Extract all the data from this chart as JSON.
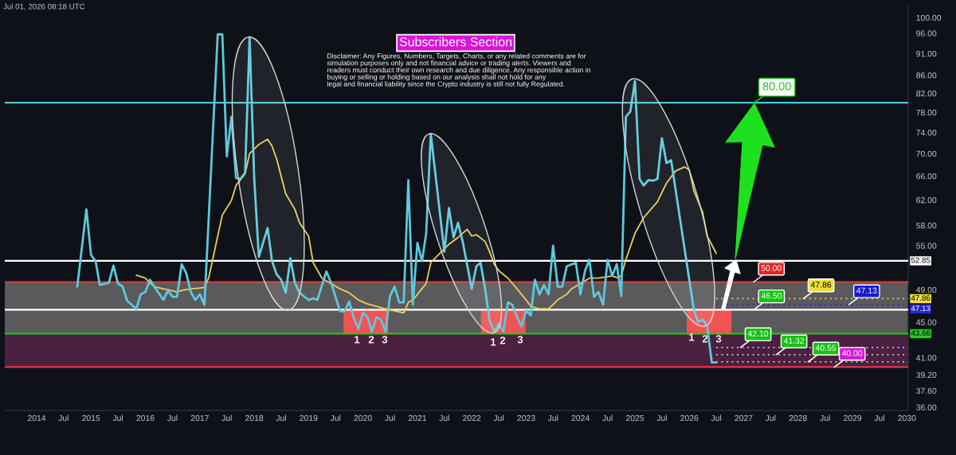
{
  "chart_data": {
    "type": "line",
    "title": "Subscribers Section",
    "annotations": [
      "Jul 01, 2026 08:18 UTC",
      "Disclaimer: Any Figures, Numbers, Targets, Charts, or any related comments are for\nsimulation purposes only and not financial advice or trading alerts. Viewers and\nreaders must conduct their own research and due diligence. Any responsible action in\nbuying or selling or holding based on our analysis shall not hold for any\nlegal and financial liability since the Crypto industry is still not fully Regulated.",
      {
        "text": "80.00",
        "x": "2027-03-09",
        "y": 80
      },
      {
        "text": "50.00",
        "x": "2027-03-09",
        "y": 50
      },
      {
        "text": "46.50",
        "x": "2027-03-10",
        "y": 46.5
      },
      {
        "text": "47.86",
        "x": "2028-02-06",
        "y": 47.86
      },
      {
        "text": "47.13",
        "x": "2028-12-08",
        "y": 47.13
      },
      {
        "text": "42.10",
        "x": "2026-12-10",
        "y": 42.1
      },
      {
        "text": "41.32",
        "x": "2027-08-08",
        "y": 41.32
      },
      {
        "text": "40.55",
        "x": "2028-03-09",
        "y": 40.55
      },
      {
        "text": "40.00",
        "x": "2028-09-02",
        "y": 40
      },
      "1",
      "2",
      "3",
      "1",
      "2",
      "3",
      "1",
      "2",
      "3"
    ],
    "xlim": [
      "2013-06-01",
      "2030-01-10"
    ],
    "xticks": [
      {
        "value": "2014-01-01",
        "label": "2014"
      },
      {
        "value": "2014-07-01",
        "label": "Jul"
      },
      {
        "value": "2015-01-01",
        "label": "2015"
      },
      {
        "value": "2015-07-01",
        "label": "Jul"
      },
      {
        "value": "2016-01-01",
        "label": "2016"
      },
      {
        "value": "2016-07-01",
        "label": "Jul"
      },
      {
        "value": "2017-01-01",
        "label": "2017"
      },
      {
        "value": "2017-07-01",
        "label": "Jul"
      },
      {
        "value": "2018-01-01",
        "label": "2018"
      },
      {
        "value": "2018-07-01",
        "label": "Jul"
      },
      {
        "value": "2019-01-01",
        "label": "2019"
      },
      {
        "value": "2019-07-01",
        "label": "Jul"
      },
      {
        "value": "2020-01-01",
        "label": "2020"
      },
      {
        "value": "2020-07-01",
        "label": "Jul"
      },
      {
        "value": "2021-01-01",
        "label": "2021"
      },
      {
        "value": "2021-07-01",
        "label": "Jul"
      },
      {
        "value": "2022-01-01",
        "label": "2022"
      },
      {
        "value": "2022-07-01",
        "label": "Jul"
      },
      {
        "value": "2023-01-01",
        "label": "2023"
      },
      {
        "value": "2023-07-01",
        "label": "Jul"
      },
      {
        "value": "2024-01-01",
        "label": "2024"
      },
      {
        "value": "2024-07-01",
        "label": "Jul"
      },
      {
        "value": "2025-01-01",
        "label": "2025"
      },
      {
        "value": "2025-07-01",
        "label": "Jul"
      },
      {
        "value": "2026-01-01",
        "label": "2026"
      },
      {
        "value": "2026-07-01",
        "label": "Jul"
      },
      {
        "value": "2027-01-01",
        "label": "2027"
      },
      {
        "value": "2027-07-01",
        "label": "Jul"
      },
      {
        "value": "2028-01-01",
        "label": "2028"
      },
      {
        "value": "2028-07-01",
        "label": "Jul"
      },
      {
        "value": "2029-01-01",
        "label": "2029"
      },
      {
        "value": "2029-07-01",
        "label": "Jul"
      },
      {
        "value": "2030-01-01",
        "label": "2030"
      }
    ],
    "ylim": [
      35.7,
      103
    ],
    "log": true,
    "grid": false,
    "yticks": [
      {
        "value": 100,
        "label": "100.00"
      },
      {
        "value": 96,
        "label": "96.00"
      },
      {
        "value": 91,
        "label": "91.00"
      },
      {
        "value": 86,
        "label": "86.00"
      },
      {
        "value": 82,
        "label": "82.00"
      },
      {
        "value": 78,
        "label": "78.00"
      },
      {
        "value": 74,
        "label": "74.00"
      },
      {
        "value": 70,
        "label": "70.00"
      },
      {
        "value": 66,
        "label": "66.00"
      },
      {
        "value": 62,
        "label": "62.00"
      },
      {
        "value": 58,
        "label": "58.00"
      },
      {
        "value": 55,
        "label": "55.00"
      },
      {
        "value": 49,
        "label": "49.00"
      },
      {
        "value": 45,
        "label": "45.00"
      },
      {
        "value": 41,
        "label": "41.00"
      },
      {
        "value": 39.2,
        "label": "39.20"
      },
      {
        "value": 37.6,
        "label": "37.60"
      },
      {
        "value": 36,
        "label": "36.00"
      }
    ],
    "bands": [
      {
        "axis": "y",
        "from": 43.66,
        "to": 50,
        "color": "#5a5a5c"
      },
      {
        "axis": "y",
        "from": 40,
        "to": 43.66,
        "color": "#4b2040"
      }
    ],
    "ref_lines": [
      {
        "axis": "y",
        "value": 80,
        "color": "#4fc3d9"
      },
      {
        "axis": "y",
        "value": 52.85,
        "label": "52.85",
        "color": "#ffffff"
      },
      {
        "axis": "y",
        "value": 50,
        "color": "#e53935"
      },
      {
        "axis": "y",
        "value": 47.86,
        "label": "47.86",
        "color": "#f2dc3c",
        "line_style": "dotted"
      },
      {
        "axis": "y",
        "value": 47.13,
        "label": "47.13",
        "color": "#2424d8",
        "line_style": "dotted"
      },
      {
        "axis": "y",
        "value": 46.5,
        "color": "#ffffff"
      },
      {
        "axis": "y",
        "value": 43.66,
        "label": "43.66",
        "color": "#22cc22"
      },
      {
        "axis": "y",
        "value": 42.1,
        "color": "#cfcfcf",
        "line_style": "dotted"
      },
      {
        "axis": "y",
        "value": 41.32,
        "color": "#cfcfcf",
        "line_style": "dotted"
      },
      {
        "axis": "y",
        "value": 40.55,
        "color": "#cfcfcf",
        "line_style": "dotted"
      },
      {
        "axis": "y",
        "value": 40,
        "color": "#e53935"
      }
    ],
    "series": [
      {
        "type": "bar",
        "color": "#f25252",
        "x": [
          "2020-01-21",
          "2022-08-01",
          "2026-05-14"
        ],
        "base": [
          43.66,
          43.66,
          43.66
        ],
        "values": [
          2.84,
          2.84,
          2.84
        ]
      },
      {
        "color": "#5cc9de",
        "x": [
          "2014-10",
          "2014-12",
          "2015-01",
          "2015-02",
          "2015-03",
          "2015-05",
          "2015-06",
          "2015-07",
          "2015-08",
          "2015-09",
          "2015-11",
          "2015-12",
          "2016-01",
          "2016-02",
          "2016-03",
          "2016-05",
          "2016-06",
          "2016-07",
          "2016-08",
          "2016-09",
          "2016-10",
          "2016-11",
          "2016-12",
          "2017-01",
          "2017-02",
          "2017-05",
          "2017-06",
          "2017-07",
          "2017-08",
          "2017-09",
          "2017-10",
          "2017-11",
          "2017-12",
          "2018-01",
          "2018-02",
          "2018-04",
          "2018-05",
          "2018-06",
          "2018-07",
          "2018-08",
          "2018-09",
          "2018-10",
          "2018-11",
          "2019-01",
          "2019-02",
          "2019-03",
          "2019-05",
          "2019-06",
          "2019-08",
          "2019-09",
          "2019-10",
          "2019-11",
          "2019-12",
          "2020-01",
          "2020-02",
          "2020-03",
          "2020-04",
          "2020-05",
          "2020-06",
          "2020-07",
          "2020-08",
          "2020-09",
          "2020-10",
          "2020-11",
          "2020-12",
          "2021-01",
          "2021-02",
          "2021-03",
          "2021-04",
          "2021-07",
          "2021-08",
          "2021-09",
          "2021-10",
          "2021-11",
          "2022-01",
          "2022-02",
          "2022-03",
          "2022-04",
          "2022-05",
          "2022-06",
          "2022-07",
          "2022-08",
          "2022-09",
          "2022-10",
          "2022-11",
          "2022-12",
          "2023-01",
          "2023-02",
          "2023-03",
          "2023-04",
          "2023-05",
          "2023-06",
          "2023-07",
          "2023-08",
          "2023-09",
          "2023-10",
          "2023-12",
          "2024-01",
          "2024-02",
          "2024-03",
          "2024-04",
          "2024-05",
          "2024-06",
          "2024-07",
          "2024-08",
          "2024-09",
          "2024-10",
          "2024-11",
          "2024-12",
          "2025-01",
          "2025-02",
          "2025-03",
          "2025-04",
          "2025-05",
          "2025-06",
          "2025-07",
          "2025-08",
          "2025-09",
          "2026-02",
          "2026-03",
          "2026-04",
          "2026-05",
          "2026-06",
          "2026-07"
        ],
        "values": [
          49.4,
          60.5,
          53.7,
          52.8,
          49.6,
          49.9,
          52.2,
          49.8,
          49.4,
          47.6,
          46.6,
          48.4,
          48.7,
          50.3,
          49.4,
          47.7,
          48.9,
          48.1,
          48.1,
          52.4,
          51.2,
          48.7,
          47.7,
          48.4,
          47.1,
          95.7,
          95.7,
          69.5,
          77.1,
          65.7,
          65.5,
          66.6,
          95.0,
          65.7,
          53.4,
          57.6,
          52.8,
          51.0,
          50.3,
          48.6,
          53.2,
          49.9,
          48.6,
          47.7,
          47.9,
          47.7,
          51.4,
          49.9,
          46.3,
          46.3,
          47.5,
          45.5,
          44.2,
          46.1,
          45.6,
          43.9,
          45.6,
          45.3,
          43.9,
          48.2,
          49.4,
          47.4,
          47.4,
          65.3,
          47.1,
          55.4,
          52.8,
          56.8,
          73.7,
          54.1,
          60.7,
          56.2,
          58.4,
          55.6,
          49.1,
          52.1,
          52.6,
          49.1,
          45.2,
          43.9,
          44.8,
          43.9,
          47.4,
          47.1,
          45.6,
          44.5,
          46.4,
          45.8,
          50.3,
          48.4,
          49.6,
          48.4,
          55.0,
          49.4,
          49.4,
          52.1,
          52.6,
          48.4,
          51.5,
          53.0,
          48.1,
          48.7,
          47.1,
          53.0,
          50.8,
          52.4,
          48.2,
          77.1,
          78.2,
          84.7,
          65.5,
          64.4,
          65.3,
          65.2,
          65.5,
          72.9,
          68.3,
          68.8,
          46.4,
          45.0,
          45.3,
          44.5,
          40.5,
          40.5
        ]
      },
      {
        "color": "#e9cf55",
        "x": [
          "2015-11",
          "2016-01",
          "2016-02",
          "2016-03",
          "2016-05",
          "2016-06",
          "2016-08",
          "2016-09",
          "2016-11",
          "2017-01",
          "2017-02",
          "2017-03",
          "2017-04",
          "2017-05",
          "2017-06",
          "2017-08",
          "2017-09",
          "2017-11",
          "2017-12",
          "2018-02",
          "2018-04",
          "2018-05",
          "2018-06",
          "2018-08",
          "2018-10",
          "2018-11",
          "2019-01",
          "2019-02",
          "2019-04",
          "2019-06",
          "2019-08",
          "2019-10",
          "2019-12",
          "2020-02",
          "2020-04",
          "2020-06",
          "2020-10",
          "2020-11",
          "2020-12",
          "2021-01",
          "2021-03",
          "2021-04",
          "2021-06",
          "2021-08",
          "2021-10",
          "2021-12",
          "2022-01",
          "2022-02",
          "2022-04",
          "2022-05",
          "2022-06",
          "2022-07",
          "2022-09",
          "2022-11",
          "2023-01",
          "2023-02",
          "2023-04",
          "2023-06",
          "2023-08",
          "2023-10",
          "2023-11",
          "2024-01",
          "2024-03",
          "2024-05",
          "2024-08",
          "2024-09",
          "2024-10",
          "2024-11",
          "2025-01",
          "2025-03",
          "2025-06",
          "2025-08",
          "2025-10",
          "2025-12",
          "2026-01",
          "2026-02",
          "2026-04",
          "2026-05",
          "2026-07"
        ],
        "values": [
          50.9,
          50.5,
          49.9,
          49.4,
          49.1,
          49.0,
          48.7,
          48.9,
          49.1,
          49.2,
          49.3,
          50.5,
          53.4,
          56.4,
          59.6,
          61.9,
          64.4,
          66.4,
          70.0,
          71.7,
          72.7,
          71.4,
          69.0,
          63.0,
          60.5,
          58.4,
          56.4,
          52.6,
          50.5,
          49.8,
          49.1,
          48.6,
          47.7,
          47.2,
          46.9,
          46.6,
          46.1,
          47.4,
          47.7,
          48.4,
          49.8,
          52.6,
          53.9,
          55.2,
          56.2,
          57.4,
          56.4,
          56.6,
          55.6,
          54.1,
          52.4,
          51.5,
          50.5,
          49.1,
          47.7,
          46.9,
          46.6,
          46.6,
          47.7,
          48.4,
          49.1,
          49.8,
          50.5,
          50.5,
          50.8,
          50.6,
          50.8,
          53.0,
          56.8,
          59.2,
          61.7,
          64.8,
          66.9,
          67.6,
          67.1,
          63.5,
          60.0,
          56.4,
          53.9
        ]
      }
    ]
  }
}
